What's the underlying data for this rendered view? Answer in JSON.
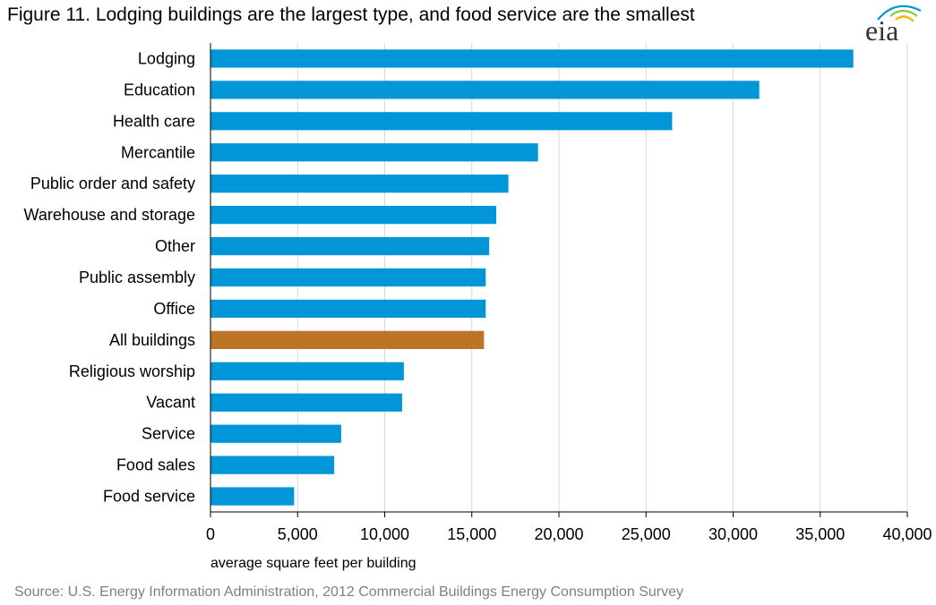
{
  "title": "Figure 11. Lodging buildings are the largest type, and food service are the smallest",
  "logo": {
    "text": "eia",
    "icon": "eia-logo"
  },
  "source": "Source: U.S. Energy Information Administration,  2012 Commercial Buildings Energy Consumption Survey",
  "colors": {
    "bar": "#0096d7",
    "highlight": "#be7426",
    "grid": "#d9d9d9",
    "axis": "#000000"
  },
  "chart_data": {
    "type": "bar",
    "orientation": "horizontal",
    "categories": [
      "Lodging",
      "Education",
      "Health care",
      "Mercantile",
      "Public order and safety",
      "Warehouse and storage",
      "Other",
      "Public assembly",
      "Office",
      "All buildings",
      "Religious worship",
      "Vacant",
      "Service",
      "Food sales",
      "Food service"
    ],
    "values": [
      36900,
      31500,
      26500,
      18800,
      17100,
      16400,
      16000,
      15800,
      15800,
      15700,
      11100,
      11000,
      7500,
      7100,
      4800
    ],
    "highlight_category": "All buildings",
    "xlabel": "average square feet per building",
    "ylabel": "",
    "xlim": [
      0,
      40000
    ],
    "xticks": [
      0,
      5000,
      10000,
      15000,
      20000,
      25000,
      30000,
      35000,
      40000
    ],
    "xtick_labels": [
      "0",
      "5,000",
      "10,000",
      "15,000",
      "20,000",
      "25,000",
      "30,000",
      "35,000",
      "40,000"
    ],
    "grid": "vertical",
    "legend": "none"
  }
}
